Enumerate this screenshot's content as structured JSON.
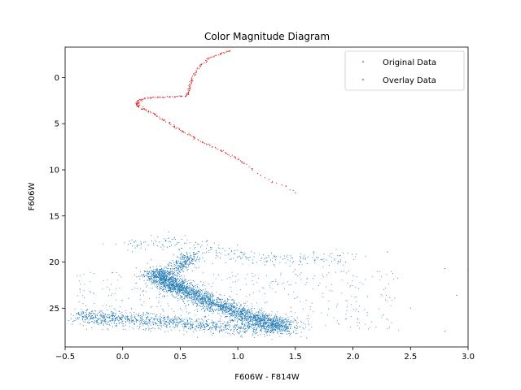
{
  "chart_data": {
    "type": "scatter",
    "title": "Color Magnitude Diagram",
    "xlabel": "F606W - F814W",
    "ylabel": "F606W",
    "xlim": [
      -0.5,
      3.0
    ],
    "ylim": [
      29.2,
      -3.3
    ],
    "y_inverted": true,
    "xticks": [
      -0.5,
      0.0,
      0.5,
      1.0,
      1.5,
      2.0,
      2.5,
      3.0
    ],
    "xtick_labels": [
      "−0.5",
      "0.0",
      "0.5",
      "1.0",
      "1.5",
      "2.0",
      "2.5",
      "3.0"
    ],
    "yticks": [
      0,
      5,
      10,
      15,
      20,
      25
    ],
    "ytick_labels": [
      "0",
      "5",
      "10",
      "15",
      "20",
      "25"
    ],
    "grid": false,
    "legend_position": "top-right",
    "series": [
      {
        "name": "Original Data",
        "color": "#1f77b4",
        "marker": "point",
        "description_points": {
          "main_sequence_ridge": [
            [
              0.3,
              21.0
            ],
            [
              0.35,
              21.8
            ],
            [
              0.45,
              22.6
            ],
            [
              0.6,
              23.5
            ],
            [
              0.8,
              24.5
            ],
            [
              1.0,
              25.5
            ],
            [
              1.2,
              26.3
            ],
            [
              1.4,
              27.0
            ]
          ],
          "turnoff_upper_branch": [
            [
              0.45,
              20.8
            ],
            [
              0.5,
              20.3
            ],
            [
              0.55,
              19.8
            ],
            [
              0.6,
              19.2
            ]
          ],
          "horizontal_band": [
            [
              -0.4,
              25.8
            ],
            [
              0.0,
              26.2
            ],
            [
              0.5,
              26.6
            ],
            [
              1.0,
              27.1
            ],
            [
              1.5,
              27.4
            ]
          ],
          "bright_band": [
            [
              0.0,
              18.2
            ],
            [
              0.5,
              17.8
            ],
            [
              1.0,
              19.5
            ],
            [
              1.5,
              19.8
            ],
            [
              2.0,
              19.5
            ]
          ],
          "outliers": [
            [
              2.3,
              18.9
            ],
            [
              2.8,
              20.7
            ],
            [
              3.0,
              20.8
            ],
            [
              2.9,
              23.6
            ],
            [
              2.5,
              25.0
            ],
            [
              2.8,
              27.5
            ]
          ]
        }
      },
      {
        "name": "Overlay Data",
        "color": "#d62728",
        "marker": "point",
        "points": [
          [
            0.93,
            -2.9
          ],
          [
            0.85,
            -2.6
          ],
          [
            0.75,
            -2.1
          ],
          [
            0.68,
            -1.4
          ],
          [
            0.63,
            -0.5
          ],
          [
            0.6,
            0.3
          ],
          [
            0.58,
            1.0
          ],
          [
            0.57,
            1.6
          ],
          [
            0.55,
            2.0
          ],
          [
            0.45,
            2.1
          ],
          [
            0.35,
            2.15
          ],
          [
            0.25,
            2.2
          ],
          [
            0.17,
            2.35
          ],
          [
            0.13,
            2.6
          ],
          [
            0.12,
            2.9
          ],
          [
            0.14,
            3.2
          ],
          [
            0.2,
            3.5
          ],
          [
            0.28,
            4.0
          ],
          [
            0.36,
            4.6
          ],
          [
            0.45,
            5.3
          ],
          [
            0.53,
            5.9
          ],
          [
            0.62,
            6.5
          ],
          [
            0.73,
            7.2
          ],
          [
            0.85,
            7.9
          ],
          [
            0.97,
            8.6
          ],
          [
            1.05,
            9.3
          ],
          [
            1.12,
            9.9
          ],
          [
            1.2,
            10.6
          ],
          [
            1.3,
            11.3
          ],
          [
            1.42,
            11.8
          ],
          [
            1.5,
            12.5
          ]
        ]
      }
    ]
  }
}
